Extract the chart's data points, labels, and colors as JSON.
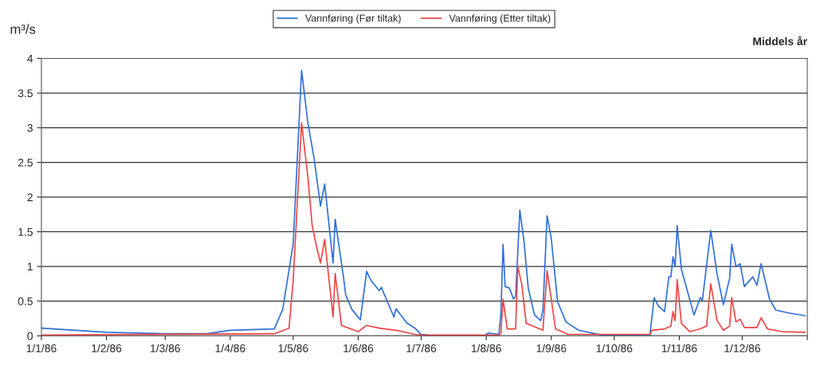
{
  "chart_data": {
    "type": "line",
    "title": "Middels år",
    "ylabel": "m³/s",
    "legend": "top",
    "grid": "y",
    "marker": "none",
    "line_style": "solid",
    "xlim": [
      "1986-01-01",
      "1987-01-01"
    ],
    "xticks": [
      {
        "value": "1986-01-01",
        "label": "1/1/86"
      },
      {
        "value": "1986-02-01",
        "label": "1/2/86"
      },
      {
        "value": "1986-03-01",
        "label": "1/3/86"
      },
      {
        "value": "1986-04-01",
        "label": "1/4/86"
      },
      {
        "value": "1986-05-01",
        "label": "1/5/86"
      },
      {
        "value": "1986-06-01",
        "label": "1/6/86"
      },
      {
        "value": "1986-07-01",
        "label": "1/7/86"
      },
      {
        "value": "1986-08-01",
        "label": "1/8/86"
      },
      {
        "value": "1986-09-01",
        "label": "1/9/86"
      },
      {
        "value": "1986-10-01",
        "label": "1/10/86"
      },
      {
        "value": "1986-11-01",
        "label": "1/11/86"
      },
      {
        "value": "1986-12-01",
        "label": "1/12/86"
      },
      {
        "value": "1987-01-01",
        "label": null
      }
    ],
    "ylim": [
      0,
      4
    ],
    "yticks": [
      0,
      0.5,
      1,
      1.5,
      2,
      2.5,
      3,
      3.5,
      4
    ],
    "series": [
      {
        "name": "Vannføring (Før tiltak)",
        "color": "#2f6fd6",
        "x": [
          "1986-01-01",
          "1986-02-01",
          "1986-03-01",
          "1986-03-21",
          "1986-04-01",
          "1986-04-22",
          "1986-04-26",
          "1986-05-01",
          "1986-05-05",
          "1986-05-08",
          "1986-05-11",
          "1986-05-14",
          "1986-05-16",
          "1986-05-20",
          "1986-05-21",
          "1986-05-25",
          "1986-05-26",
          "1986-05-29",
          "1986-06-02",
          "1986-06-05",
          "1986-06-07",
          "1986-06-11",
          "1986-06-12",
          "1986-06-18",
          "1986-06-19",
          "1986-06-24",
          "1986-06-28",
          "1986-07-01",
          "1986-07-08",
          "1986-07-31",
          "1986-08-02",
          "1986-08-07",
          "1986-08-08",
          "1986-08-09",
          "1986-08-10",
          "1986-08-12",
          "1986-08-14",
          "1986-08-15",
          "1986-08-17",
          "1986-08-19",
          "1986-08-21",
          "1986-08-24",
          "1986-08-27",
          "1986-08-28",
          "1986-08-30",
          "1986-09-01",
          "1986-09-04",
          "1986-09-08",
          "1986-09-14",
          "1986-09-25",
          "1986-10-18",
          "1986-10-20",
          "1986-10-22",
          "1986-10-25",
          "1986-10-27",
          "1986-10-28",
          "1986-10-29",
          "1986-10-30",
          "1986-10-31",
          "1986-11-02",
          "1986-11-08",
          "1986-11-11",
          "1986-11-12",
          "1986-11-16",
          "1986-11-19",
          "1986-11-22",
          "1986-11-25",
          "1986-11-26",
          "1986-11-28",
          "1986-11-30",
          "1986-12-02",
          "1986-12-06",
          "1986-12-08",
          "1986-12-10",
          "1986-12-14",
          "1986-12-17",
          "1986-12-23",
          "1986-12-31"
        ],
        "values": [
          0.11,
          0.05,
          0.03,
          0.03,
          0.08,
          0.1,
          0.38,
          1.33,
          3.83,
          3.07,
          2.55,
          1.87,
          2.19,
          1.05,
          1.68,
          0.84,
          0.59,
          0.38,
          0.23,
          0.93,
          0.8,
          0.65,
          0.7,
          0.27,
          0.39,
          0.19,
          0.11,
          0.02,
          0.0,
          0.0,
          0.04,
          0.02,
          0.33,
          1.32,
          0.71,
          0.69,
          0.53,
          0.57,
          1.81,
          1.36,
          0.69,
          0.3,
          0.22,
          0.37,
          1.73,
          1.4,
          0.49,
          0.2,
          0.08,
          0.01,
          0.01,
          0.55,
          0.43,
          0.35,
          0.85,
          0.85,
          1.14,
          1.0,
          1.59,
          0.96,
          0.3,
          0.55,
          0.51,
          1.52,
          0.89,
          0.45,
          0.83,
          1.32,
          1.0,
          1.04,
          0.71,
          0.85,
          0.73,
          1.04,
          0.53,
          0.37,
          0.33,
          0.29
        ]
      },
      {
        "name": "Vannføring (Etter tiltak)",
        "color": "#ee4444",
        "x": [
          "1986-01-01",
          "1986-04-22",
          "1986-04-29",
          "1986-05-01",
          "1986-05-05",
          "1986-05-08",
          "1986-05-10",
          "1986-05-12",
          "1986-05-14",
          "1986-05-16",
          "1986-05-20",
          "1986-05-21",
          "1986-05-24",
          "1986-06-01",
          "1986-06-05",
          "1986-06-11",
          "1986-06-19",
          "1986-06-28",
          "1986-07-01",
          "1986-08-07",
          "1986-08-08",
          "1986-08-09",
          "1986-08-11",
          "1986-08-15",
          "1986-08-16",
          "1986-08-18",
          "1986-08-20",
          "1986-08-28",
          "1986-08-30",
          "1986-09-01",
          "1986-09-03",
          "1986-09-09",
          "1986-10-18",
          "1986-10-19",
          "1986-10-25",
          "1986-10-28",
          "1986-10-29",
          "1986-10-30",
          "1986-10-31",
          "1986-11-02",
          "1986-11-06",
          "1986-11-11",
          "1986-11-14",
          "1986-11-16",
          "1986-11-19",
          "1986-11-22",
          "1986-11-25",
          "1986-11-26",
          "1986-11-28",
          "1986-11-30",
          "1986-12-02",
          "1986-12-08",
          "1986-12-10",
          "1986-12-13",
          "1986-12-20",
          "1986-12-31"
        ],
        "values": [
          0.01,
          0.03,
          0.11,
          0.8,
          3.07,
          2.29,
          1.6,
          1.3,
          1.05,
          1.39,
          0.27,
          0.9,
          0.15,
          0.06,
          0.15,
          0.11,
          0.08,
          0.02,
          0.01,
          0.01,
          0.04,
          0.53,
          0.1,
          0.1,
          1.0,
          0.73,
          0.18,
          0.08,
          0.94,
          0.53,
          0.1,
          0.02,
          0.02,
          0.08,
          0.1,
          0.14,
          0.35,
          0.22,
          0.81,
          0.18,
          0.06,
          0.1,
          0.14,
          0.75,
          0.22,
          0.08,
          0.14,
          0.55,
          0.2,
          0.24,
          0.12,
          0.12,
          0.26,
          0.1,
          0.06,
          0.05
        ]
      }
    ]
  }
}
